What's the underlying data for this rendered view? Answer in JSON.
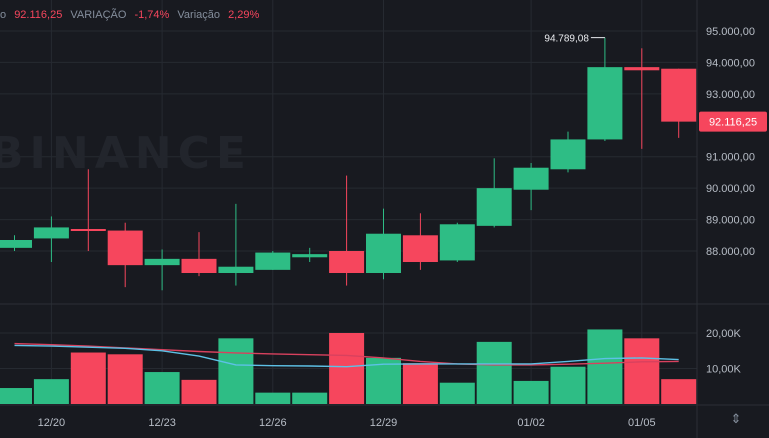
{
  "infobar": {
    "close_prefix": "o",
    "close_value": "92.116,25",
    "variation_label": "VARIAÇÃO",
    "variation_value": "-1,74%",
    "amplitude_label": "Variação",
    "amplitude_value": "2,29%"
  },
  "watermark": "BINANCE",
  "colors": {
    "background": "#181a20",
    "up": "#2ebd85",
    "down": "#f6465d",
    "grid": "#262a31",
    "axis_text": "#b7bdc6",
    "ma_blue": "#5dc1e6",
    "ma_pink": "#d8415e"
  },
  "chart_data": {
    "type": "candlestick",
    "price_ticks": [
      "95.000,00",
      "94.000,00",
      "93.000,00",
      "91.000,00",
      "90.000,00",
      "89.000,00",
      "88.000,00"
    ],
    "price_tick_values": [
      95000,
      94000,
      93000,
      91000,
      90000,
      89000,
      88000
    ],
    "x_ticks": [
      {
        "label": "12/20",
        "index": 1
      },
      {
        "label": "12/23",
        "index": 4
      },
      {
        "label": "12/26",
        "index": 7
      },
      {
        "label": "12/29",
        "index": 10
      },
      {
        "label": "01/02",
        "index": 14
      },
      {
        "label": "01/05",
        "index": 17
      }
    ],
    "last_price_label": "92.116,25",
    "last_price": 92116.25,
    "high_marker_label": "94.789,08",
    "high_marker_value": 94789.08,
    "high_marker_index": 16,
    "candles": [
      {
        "o": 88100,
        "c": 88350,
        "h": 88500,
        "l": 88000
      },
      {
        "o": 88400,
        "c": 88750,
        "h": 89100,
        "l": 87650
      },
      {
        "o": 88700,
        "c": 88650,
        "h": 90600,
        "l": 88000
      },
      {
        "o": 88650,
        "c": 87550,
        "h": 88900,
        "l": 86850
      },
      {
        "o": 87550,
        "c": 87750,
        "h": 88050,
        "l": 86750
      },
      {
        "o": 87750,
        "c": 87300,
        "h": 88600,
        "l": 87200
      },
      {
        "o": 87300,
        "c": 87500,
        "h": 89500,
        "l": 86900
      },
      {
        "o": 87400,
        "c": 87950,
        "h": 88000,
        "l": 87400
      },
      {
        "o": 87800,
        "c": 87900,
        "h": 88100,
        "l": 87650
      },
      {
        "o": 88000,
        "c": 87300,
        "h": 90400,
        "l": 86900
      },
      {
        "o": 87300,
        "c": 88550,
        "h": 89350,
        "l": 87100
      },
      {
        "o": 88500,
        "c": 87650,
        "h": 89200,
        "l": 87400
      },
      {
        "o": 87700,
        "c": 88850,
        "h": 88900,
        "l": 87650
      },
      {
        "o": 88800,
        "c": 90000,
        "h": 90950,
        "l": 88750
      },
      {
        "o": 89950,
        "c": 90650,
        "h": 90800,
        "l": 89300
      },
      {
        "o": 90600,
        "c": 91550,
        "h": 91800,
        "l": 90500
      },
      {
        "o": 91550,
        "c": 93850,
        "h": 94789.08,
        "l": 91500
      },
      {
        "o": 93850,
        "c": 93750,
        "h": 94450,
        "l": 91250
      },
      {
        "o": 93800,
        "c": 92116.25,
        "h": 93800,
        "l": 91600
      }
    ],
    "volume_ticks": [
      "20,00K",
      "10,00K"
    ],
    "volume_tick_values": [
      20000,
      10000
    ],
    "volumes": [
      {
        "v": 4500,
        "up": true
      },
      {
        "v": 7000,
        "up": true
      },
      {
        "v": 14500,
        "up": false
      },
      {
        "v": 14000,
        "up": false
      },
      {
        "v": 9000,
        "up": true
      },
      {
        "v": 6800,
        "up": false
      },
      {
        "v": 18500,
        "up": true
      },
      {
        "v": 3200,
        "up": true
      },
      {
        "v": 3200,
        "up": true
      },
      {
        "v": 20000,
        "up": false
      },
      {
        "v": 13000,
        "up": true
      },
      {
        "v": 11500,
        "up": false
      },
      {
        "v": 6000,
        "up": true
      },
      {
        "v": 17500,
        "up": true
      },
      {
        "v": 6500,
        "up": true
      },
      {
        "v": 10500,
        "up": true
      },
      {
        "v": 21000,
        "up": true
      },
      {
        "v": 18500,
        "up": false
      },
      {
        "v": 7000,
        "up": false
      }
    ],
    "ma_short": [
      16500,
      16300,
      16000,
      15700,
      15000,
      13500,
      11000,
      10800,
      10700,
      10500,
      11200,
      11300,
      11300,
      11300,
      11300,
      12000,
      12800,
      13000,
      12500
    ],
    "ma_long": [
      17000,
      16700,
      16300,
      15800,
      15300,
      14800,
      14400,
      14100,
      13900,
      13700,
      13000,
      12000,
      11300,
      11000,
      11000,
      11200,
      11500,
      11900,
      12000
    ]
  }
}
